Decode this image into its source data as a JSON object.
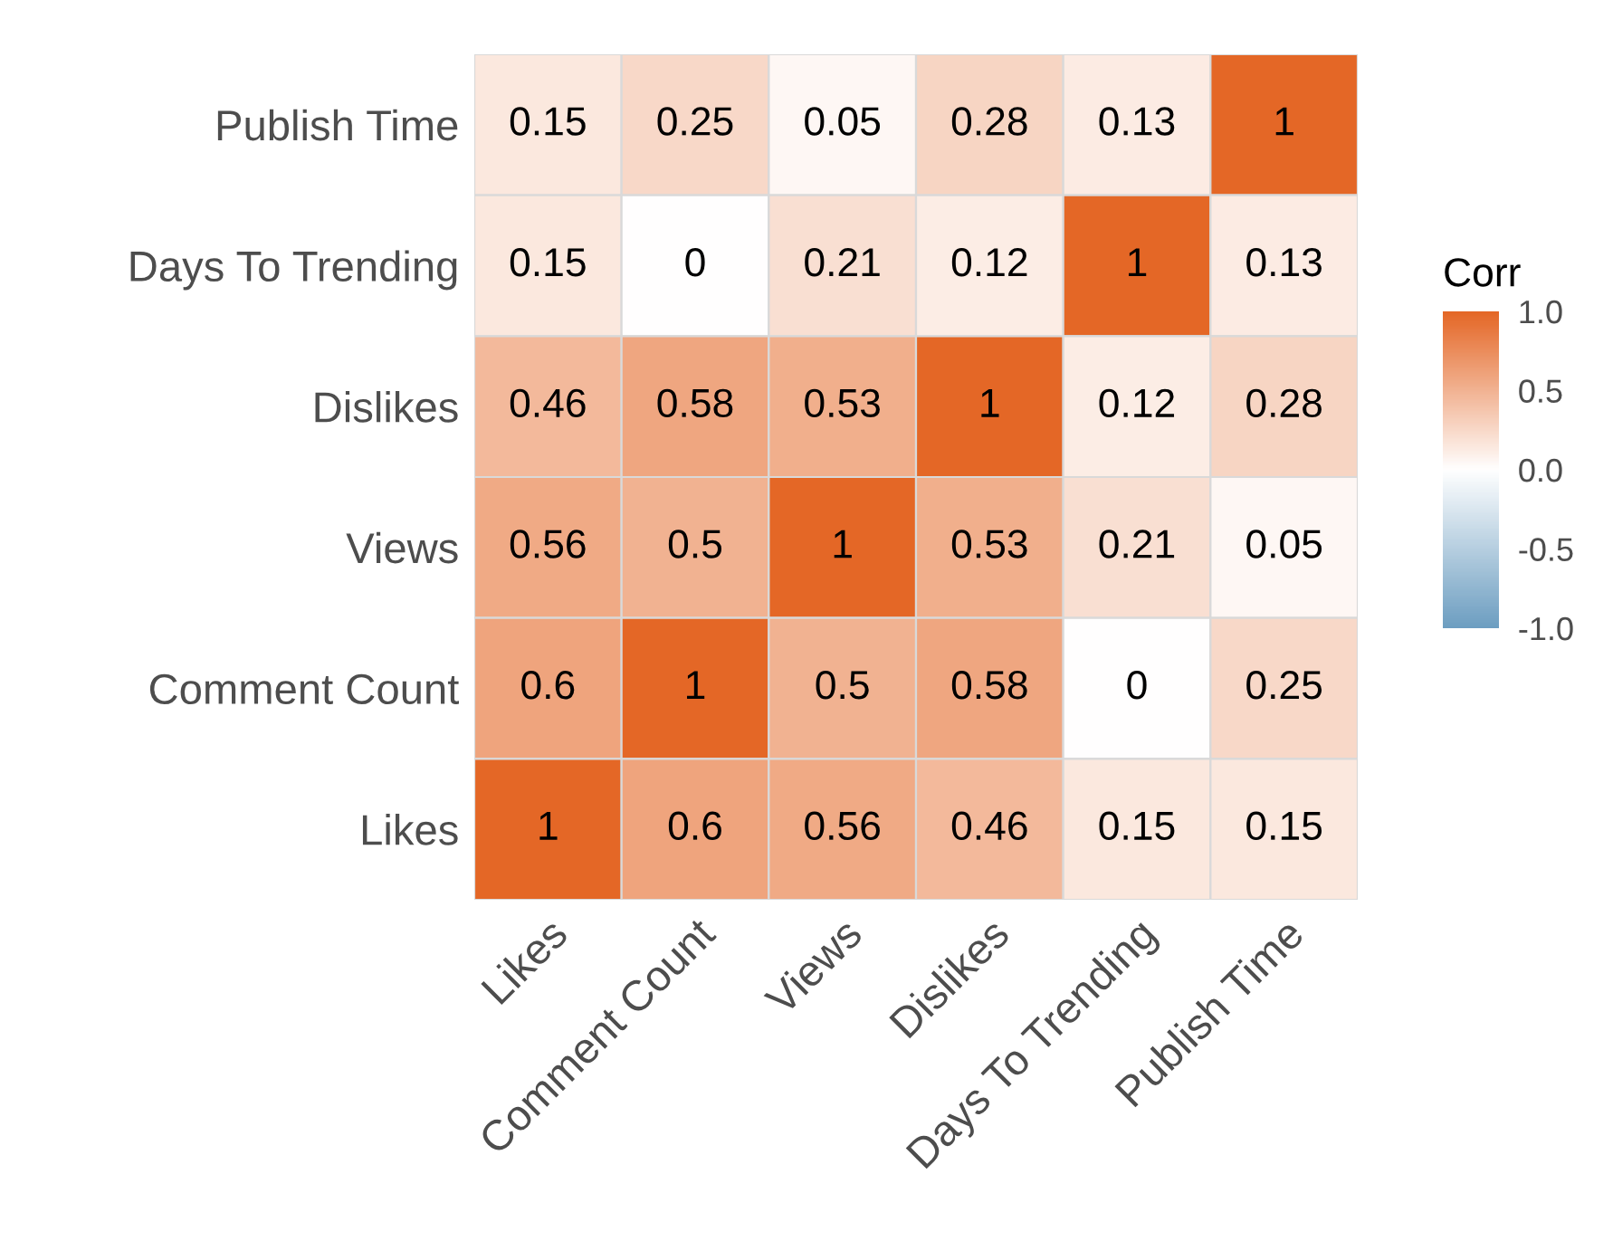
{
  "chart_data": {
    "type": "heatmap",
    "clabel": "Corr",
    "categories": [
      "Likes",
      "Comment Count",
      "Views",
      "Dislikes",
      "Days To Trending",
      "Publish Time"
    ],
    "y_categories": [
      "Publish Time",
      "Days To Trending",
      "Dislikes",
      "Views",
      "Comment Count",
      "Likes"
    ],
    "cells": [
      [
        0.15,
        0.25,
        0.05,
        0.28,
        0.13,
        1
      ],
      [
        0.15,
        0,
        0.21,
        0.12,
        1,
        0.13
      ],
      [
        0.46,
        0.58,
        0.53,
        1,
        0.12,
        0.28
      ],
      [
        0.56,
        0.5,
        1,
        0.53,
        0.21,
        0.05
      ],
      [
        0.6,
        1,
        0.5,
        0.58,
        0,
        0.25
      ],
      [
        1,
        0.6,
        0.56,
        0.46,
        0.15,
        0.15
      ]
    ],
    "colors": [
      "#6d9ec1",
      "#ffffff",
      "#e46726"
    ],
    "clim": [
      -1,
      1
    ],
    "cticks": [
      {
        "value": 1,
        "label": "1.0"
      },
      {
        "value": 0.5,
        "label": "0.5"
      },
      {
        "value": 0,
        "label": "0.0"
      },
      {
        "value": -0.5,
        "label": "-0.5"
      },
      {
        "value": -1,
        "label": "-1.0"
      }
    ],
    "data_labels": true
  }
}
